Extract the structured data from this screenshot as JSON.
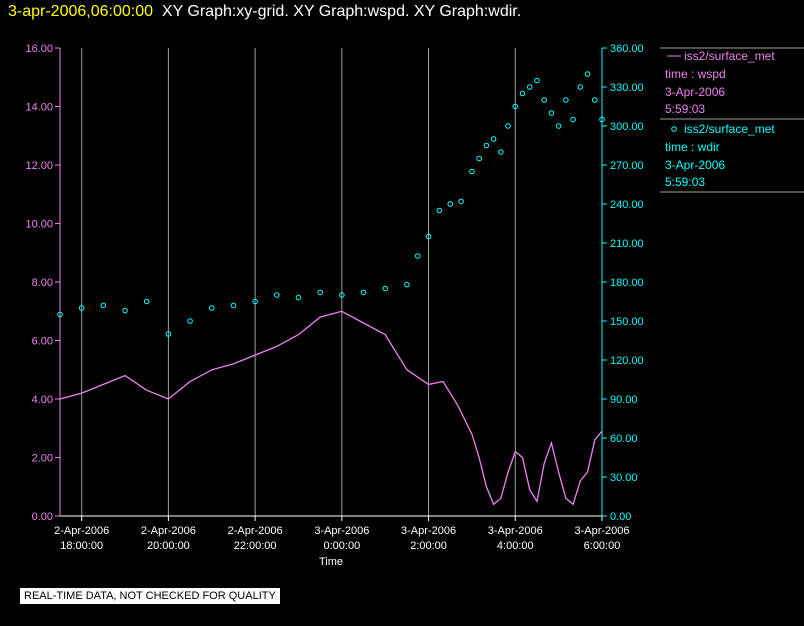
{
  "header": {
    "timestamp": "3-apr-2006,06:00:00",
    "graphs": "XY Graph:xy-grid.  XY Graph:wspd.  XY Graph:wdir."
  },
  "disclaimer": "REAL-TIME DATA, NOT CHECKED FOR QUALITY",
  "colors": {
    "wspd": "#ee82ee",
    "wdir": "#00ffff",
    "grid": "#a0a0a0",
    "axis": "#ffffff"
  },
  "legend": [
    {
      "name": "iss2/surface_met",
      "var": "time : wspd",
      "date": "3-Apr-2006",
      "time": "5:59:03"
    },
    {
      "name": "iss2/surface_met",
      "var": "time : wdir",
      "date": "3-Apr-2006",
      "time": "5:59:03"
    }
  ],
  "chart_data": {
    "type": "line",
    "xlabel": "Time",
    "xlim": [
      "2006-04-02 17:30",
      "2006-04-03 06:00"
    ],
    "x_ticks": [
      {
        "date": "2-Apr-2006",
        "time": "18:00:00"
      },
      {
        "date": "2-Apr-2006",
        "time": "20:00:00"
      },
      {
        "date": "2-Apr-2006",
        "time": "22:00:00"
      },
      {
        "date": "3-Apr-2006",
        "time": "0:00:00"
      },
      {
        "date": "3-Apr-2006",
        "time": "2:00:00"
      },
      {
        "date": "3-Apr-2006",
        "time": "4:00:00"
      },
      {
        "date": "3-Apr-2006",
        "time": "6:00:00"
      }
    ],
    "left_axis": {
      "ylim": [
        0,
        16
      ],
      "ticks": [
        "0.00",
        "2.00",
        "4.00",
        "6.00",
        "8.00",
        "10.00",
        "12.00",
        "14.00",
        "16.00"
      ]
    },
    "right_axis": {
      "ylim": [
        0,
        360
      ],
      "ticks": [
        "0.00",
        "30.00",
        "60.00",
        "90.00",
        "120.00",
        "150.00",
        "180.00",
        "210.00",
        "240.00",
        "270.00",
        "300.00",
        "330.00",
        "360.00"
      ]
    },
    "grid": "vertical",
    "legend_position": "right",
    "series": [
      {
        "name": "iss2/surface_met time : wspd",
        "axis": "left",
        "style": "line",
        "x": [
          "2006-04-02 17:30",
          "2006-04-02 18:00",
          "2006-04-02 18:30",
          "2006-04-02 19:00",
          "2006-04-02 19:30",
          "2006-04-02 20:00",
          "2006-04-02 20:30",
          "2006-04-02 21:00",
          "2006-04-02 21:30",
          "2006-04-02 22:00",
          "2006-04-02 22:30",
          "2006-04-02 23:00",
          "2006-04-02 23:30",
          "2006-04-03 00:00",
          "2006-04-03 00:30",
          "2006-04-03 01:00",
          "2006-04-03 01:30",
          "2006-04-03 02:00",
          "2006-04-03 02:20",
          "2006-04-03 02:40",
          "2006-04-03 03:00",
          "2006-04-03 03:10",
          "2006-04-03 03:20",
          "2006-04-03 03:30",
          "2006-04-03 03:40",
          "2006-04-03 03:50",
          "2006-04-03 04:00",
          "2006-04-03 04:10",
          "2006-04-03 04:20",
          "2006-04-03 04:30",
          "2006-04-03 04:40",
          "2006-04-03 04:50",
          "2006-04-03 05:00",
          "2006-04-03 05:10",
          "2006-04-03 05:20",
          "2006-04-03 05:30",
          "2006-04-03 05:40",
          "2006-04-03 05:50",
          "2006-04-03 06:00"
        ],
        "values": [
          4.0,
          4.2,
          4.5,
          4.8,
          4.3,
          4.0,
          4.6,
          5.0,
          5.2,
          5.5,
          5.8,
          6.2,
          6.8,
          7.0,
          6.6,
          6.2,
          5.0,
          4.5,
          4.6,
          3.8,
          2.8,
          2.0,
          1.0,
          0.4,
          0.6,
          1.5,
          2.2,
          2.0,
          0.9,
          0.5,
          1.8,
          2.5,
          1.5,
          0.6,
          0.4,
          1.2,
          1.5,
          2.6,
          2.9
        ]
      },
      {
        "name": "iss2/surface_met time : wdir",
        "axis": "right",
        "style": "scatter",
        "x": [
          "2006-04-02 17:30",
          "2006-04-02 18:00",
          "2006-04-02 18:30",
          "2006-04-02 19:00",
          "2006-04-02 19:30",
          "2006-04-02 20:00",
          "2006-04-02 20:30",
          "2006-04-02 21:00",
          "2006-04-02 21:30",
          "2006-04-02 22:00",
          "2006-04-02 22:30",
          "2006-04-02 23:00",
          "2006-04-02 23:30",
          "2006-04-03 00:00",
          "2006-04-03 00:30",
          "2006-04-03 01:00",
          "2006-04-03 01:30",
          "2006-04-03 01:45",
          "2006-04-03 02:00",
          "2006-04-03 02:15",
          "2006-04-03 02:30",
          "2006-04-03 02:45",
          "2006-04-03 03:00",
          "2006-04-03 03:10",
          "2006-04-03 03:20",
          "2006-04-03 03:30",
          "2006-04-03 03:40",
          "2006-04-03 03:50",
          "2006-04-03 04:00",
          "2006-04-03 04:10",
          "2006-04-03 04:20",
          "2006-04-03 04:30",
          "2006-04-03 04:40",
          "2006-04-03 04:50",
          "2006-04-03 05:00",
          "2006-04-03 05:10",
          "2006-04-03 05:20",
          "2006-04-03 05:30",
          "2006-04-03 05:40",
          "2006-04-03 05:50",
          "2006-04-03 06:00"
        ],
        "values": [
          155,
          160,
          162,
          158,
          165,
          140,
          150,
          160,
          162,
          165,
          170,
          168,
          172,
          170,
          172,
          175,
          178,
          200,
          215,
          235,
          240,
          242,
          265,
          275,
          285,
          290,
          280,
          300,
          315,
          325,
          330,
          335,
          320,
          310,
          300,
          320,
          305,
          330,
          340,
          320,
          305
        ]
      }
    ]
  }
}
